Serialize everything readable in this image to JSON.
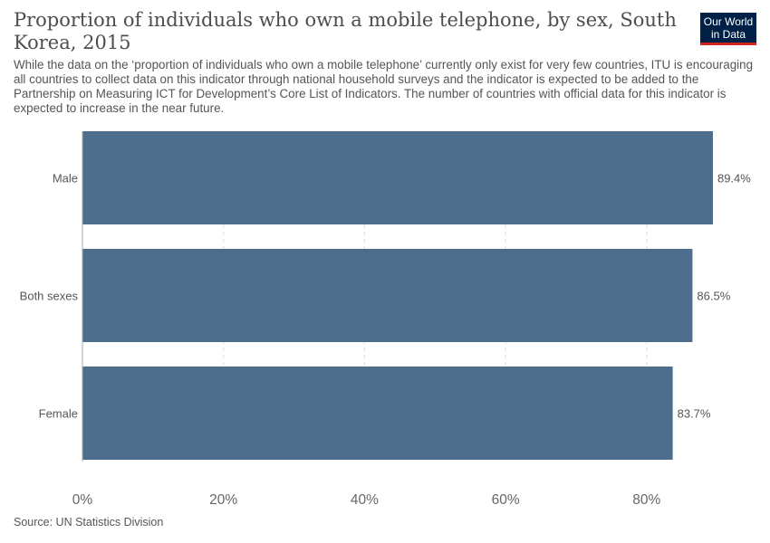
{
  "header": {
    "title": "Proportion of individuals who own a mobile telephone, by sex, South Korea, 2015",
    "subtitle": "While the data on the ‘proportion of individuals who own a mobile telephone’ currently only exist for very few countries, ITU is encouraging all countries to collect data on this indicator through national household surveys and the indicator is expected to be added to the Partnership on Measuring ICT for Development’s Core List of Indicators. The number of countries with official data for this indicator is expected to increase in the near future."
  },
  "logo": {
    "line1": "Our World",
    "line2": "in Data",
    "bg_color": "#002147",
    "accent_color": "#ce261e"
  },
  "footer": {
    "source": "Source: UN Statistics Division"
  },
  "chart_data": {
    "type": "bar",
    "orientation": "horizontal",
    "categories": [
      "Male",
      "Both sexes",
      "Female"
    ],
    "values": [
      89.4,
      86.5,
      83.7
    ],
    "value_labels": [
      "89.4%",
      "86.5%",
      "83.7%"
    ],
    "xlim": [
      0,
      100
    ],
    "x_ticks": [
      0,
      20,
      40,
      60,
      80
    ],
    "x_tick_labels": [
      "0%",
      "20%",
      "40%",
      "60%",
      "80%"
    ],
    "grid": "vertical dashed",
    "bar_color": "#4c6d8c",
    "title": "Proportion of individuals who own a mobile telephone, by sex, South Korea, 2015"
  }
}
